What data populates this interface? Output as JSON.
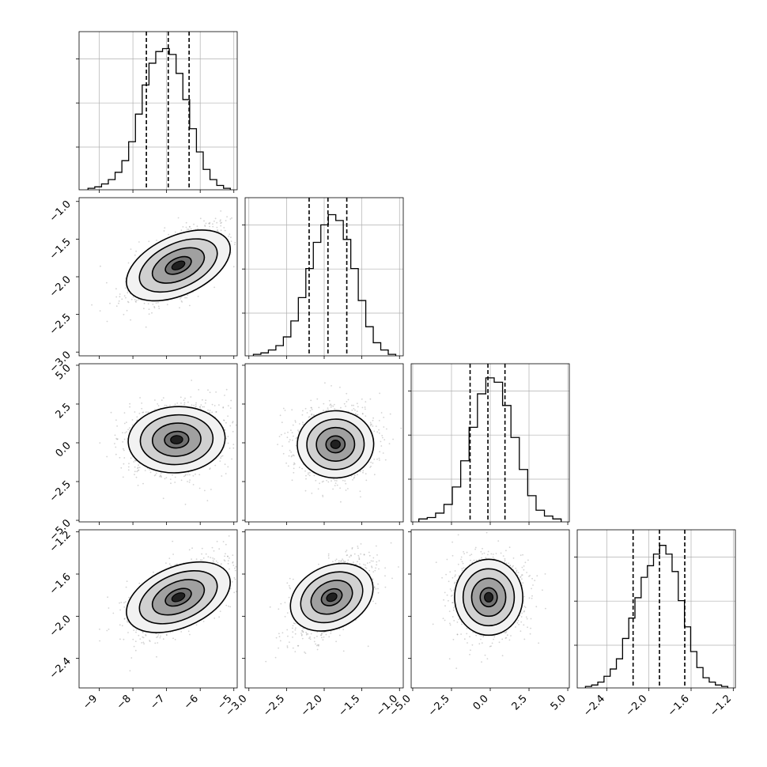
{
  "chart_data": {
    "type": "corner",
    "parameters": 4,
    "axis_ranges": [
      [
        -9.6,
        -4.9
      ],
      [
        -3.05,
        -0.95
      ],
      [
        -5.1,
        5.1
      ],
      [
        -2.68,
        -1.18
      ]
    ],
    "tick_labels": [
      [
        "−9",
        "−8",
        "−7",
        "−6",
        "−5"
      ],
      [
        "−3.0",
        "−2.5",
        "−2.0",
        "−1.5",
        "−1.0"
      ],
      [
        "−5.0",
        "−2.5",
        "0.0",
        "2.5",
        "5.0"
      ],
      [
        "−2.4",
        "−2.0",
        "−1.6",
        "−1.2"
      ]
    ],
    "tick_values": [
      [
        -9,
        -8,
        -7,
        -6,
        -5
      ],
      [
        -3.0,
        -2.5,
        -2.0,
        -1.5,
        -1.0
      ],
      [
        -5.0,
        -2.5,
        0.0,
        2.5,
        5.0
      ],
      [
        -2.4,
        -2.0,
        -1.6,
        -1.2
      ]
    ],
    "quantiles": [
      [
        -7.6,
        -6.95,
        -6.33
      ],
      [
        -2.2,
        -1.95,
        -1.7
      ],
      [
        -1.3,
        -0.15,
        0.95
      ],
      [
        -2.15,
        -1.9,
        -1.66
      ]
    ],
    "histograms": [
      [
        0.01,
        0.02,
        0.04,
        0.07,
        0.12,
        0.2,
        0.33,
        0.52,
        0.72,
        0.87,
        0.95,
        0.97,
        0.93,
        0.8,
        0.62,
        0.42,
        0.26,
        0.14,
        0.07,
        0.03,
        0.01
      ],
      [
        0.01,
        0.02,
        0.04,
        0.07,
        0.13,
        0.24,
        0.4,
        0.6,
        0.78,
        0.9,
        0.97,
        0.93,
        0.8,
        0.6,
        0.38,
        0.2,
        0.09,
        0.04,
        0.01
      ],
      [
        0.02,
        0.03,
        0.06,
        0.12,
        0.24,
        0.42,
        0.65,
        0.88,
        0.99,
        0.96,
        0.8,
        0.58,
        0.36,
        0.18,
        0.08,
        0.04,
        0.02
      ],
      [
        0.01,
        0.02,
        0.04,
        0.08,
        0.13,
        0.2,
        0.34,
        0.48,
        0.62,
        0.76,
        0.84,
        0.92,
        0.98,
        0.92,
        0.8,
        0.6,
        0.42,
        0.25,
        0.14,
        0.07,
        0.04,
        0.02,
        0.01
      ]
    ],
    "correlations": [
      [
        0,
        1,
        0.65
      ],
      [
        0,
        2,
        0.1
      ],
      [
        1,
        2,
        0.05
      ],
      [
        0,
        3,
        0.6
      ],
      [
        1,
        3,
        0.55
      ],
      [
        2,
        3,
        0.0
      ]
    ],
    "peaks": [
      [
        -6.65,
        -1.85
      ],
      [
        -6.7,
        0.2
      ],
      [
        -1.85,
        -0.1
      ],
      [
        -6.65,
        -1.82
      ],
      [
        -1.9,
        -1.82
      ],
      [
        -0.1,
        -1.82
      ]
    ],
    "scales": [
      [
        0.7,
        0.25
      ],
      [
        0.7,
        1.1
      ],
      [
        0.25,
        1.1
      ],
      [
        0.7,
        0.18
      ],
      [
        0.25,
        0.18
      ],
      [
        1.1,
        0.18
      ]
    ],
    "colors": {
      "line": "#000000",
      "grid": "#b0b0b0",
      "scatter": "#808080",
      "density": "#000000"
    },
    "grid": true,
    "title": "",
    "xlabel": "",
    "ylabel": ""
  }
}
